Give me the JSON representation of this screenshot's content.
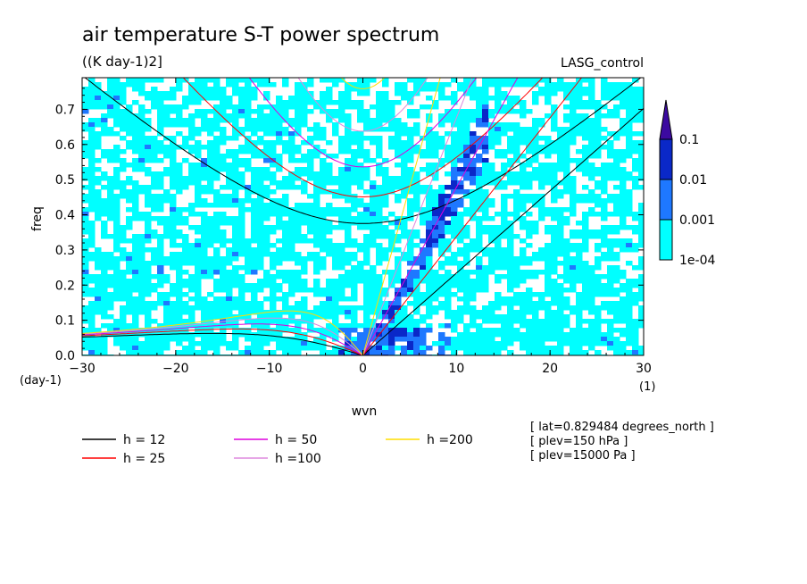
{
  "chart_data": {
    "type": "heatmap",
    "title": "air temperature S-T power spectrum",
    "subtitle": "((K day-1)2]",
    "experiment": "LASG_control",
    "xlabel": "wvn",
    "ylabel": "freq",
    "x_unit": "(1)",
    "y_unit": "(day-1)",
    "xlim": [
      -30,
      30
    ],
    "ylim": [
      0,
      0.79
    ],
    "x_ticks": [
      "−30",
      "−20",
      "−10",
      "0",
      "10",
      "20",
      "30"
    ],
    "y_ticks": [
      "0.0",
      "0.1",
      "0.2",
      "0.3",
      "0.4",
      "0.5",
      "0.6",
      "0.7"
    ],
    "colorbar": {
      "levels": [
        "1e-04",
        "0.001",
        "0.01",
        "0.1"
      ],
      "colors": [
        "#00ffff",
        "#1e78ff",
        "#0a28c8",
        "#3c0aa0"
      ],
      "extend": "max"
    },
    "contour_colors": {
      "background": "#00ffff",
      "mid": "#1e78ff",
      "high": "#0a28c8"
    },
    "dispersion_curves": [
      {
        "label": "h = 12",
        "h": 12,
        "color": "#000000"
      },
      {
        "label": "h = 25",
        "h": 25,
        "color": "#ff0000"
      },
      {
        "label": "h = 50",
        "h": 50,
        "color": "#dd00dd"
      },
      {
        "label": "h =100",
        "h": 100,
        "color": "#dd88dd"
      },
      {
        "label": "h =200",
        "h": 200,
        "color": "#ffdd00"
      }
    ],
    "info": [
      "[ lat=0.829484 degrees_north ]",
      "[ plev=150 hPa ]",
      "[ plev=15000 Pa ]"
    ]
  }
}
